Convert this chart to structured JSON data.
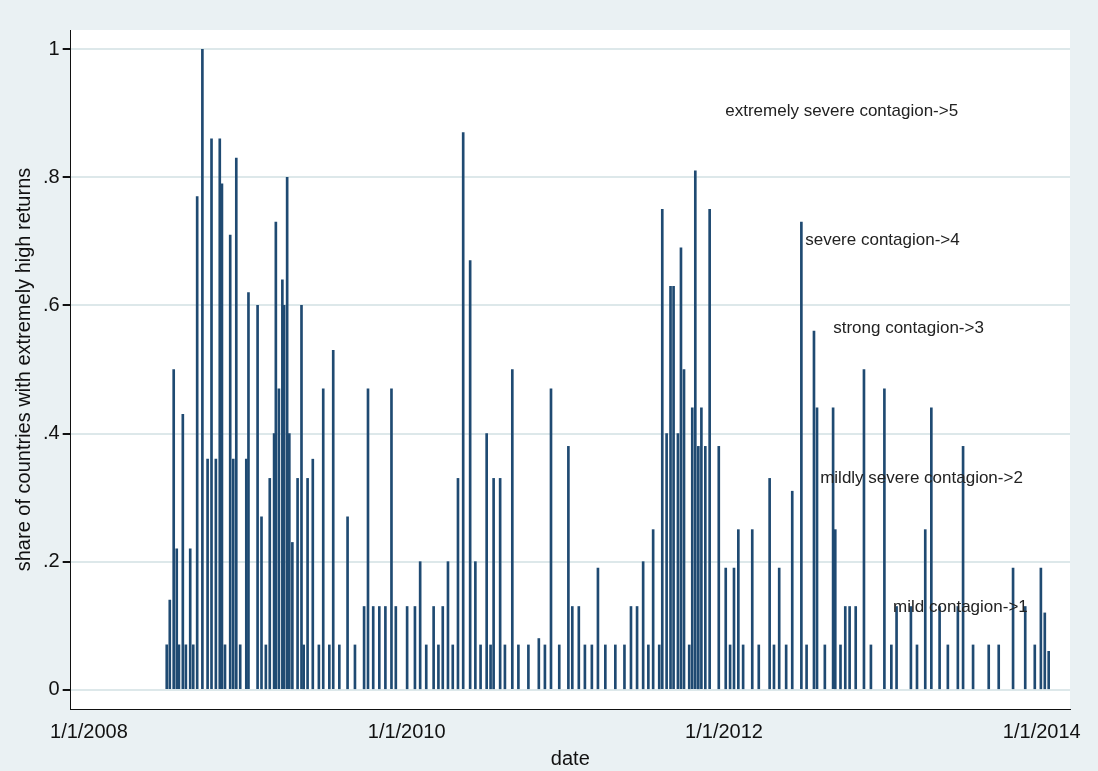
{
  "chart_data": {
    "type": "bar",
    "xlabel": "date",
    "ylabel": "share of countries with extremely high returns",
    "x": [
      "2008-06-28",
      "2008-07-05",
      "2008-07-14",
      "2008-07-21",
      "2008-07-26",
      "2008-08-04",
      "2008-08-11",
      "2008-08-21",
      "2008-08-28",
      "2008-09-06",
      "2008-09-18",
      "2008-09-30",
      "2008-10-09",
      "2008-10-19",
      "2008-10-28",
      "2008-11-02",
      "2008-11-09",
      "2008-11-21",
      "2008-11-28",
      "2008-12-05",
      "2008-12-14",
      "2008-12-28",
      "2009-01-02",
      "2009-01-23",
      "2009-02-01",
      "2009-02-11",
      "2009-02-20",
      "2009-03-02",
      "2009-03-06",
      "2009-03-13",
      "2009-03-21",
      "2009-03-25",
      "2009-04-01",
      "2009-04-06",
      "2009-04-13",
      "2009-04-25",
      "2009-05-04",
      "2009-05-09",
      "2009-05-18",
      "2009-05-30",
      "2009-06-13",
      "2009-06-23",
      "2009-07-07",
      "2009-07-16",
      "2009-07-30",
      "2009-08-18",
      "2009-09-04",
      "2009-09-25",
      "2009-10-04",
      "2009-10-16",
      "2009-10-30",
      "2009-11-13",
      "2009-11-27",
      "2009-12-07",
      "2010-01-02",
      "2010-01-20",
      "2010-02-01",
      "2010-02-15",
      "2010-03-04",
      "2010-03-15",
      "2010-03-25",
      "2010-04-06",
      "2010-04-17",
      "2010-04-29",
      "2010-05-11",
      "2010-05-27",
      "2010-06-08",
      "2010-06-20",
      "2010-07-04",
      "2010-07-13",
      "2010-07-20",
      "2010-08-04",
      "2010-08-15",
      "2010-09-01",
      "2010-09-15",
      "2010-10-08",
      "2010-11-01",
      "2010-11-15",
      "2010-11-29",
      "2010-12-18",
      "2011-01-08",
      "2011-01-17",
      "2011-02-01",
      "2011-02-15",
      "2011-03-03",
      "2011-03-17",
      "2011-04-03",
      "2011-04-26",
      "2011-05-17",
      "2011-06-01",
      "2011-06-15",
      "2011-06-29",
      "2011-07-11",
      "2011-07-22",
      "2011-08-05",
      "2011-08-12",
      "2011-08-22",
      "2011-08-31",
      "2011-09-07",
      "2011-09-17",
      "2011-09-24",
      "2011-10-01",
      "2011-10-13",
      "2011-10-20",
      "2011-10-27",
      "2011-11-03",
      "2011-11-10",
      "2011-11-19",
      "2011-11-29",
      "2011-12-20",
      "2012-01-05",
      "2012-01-15",
      "2012-01-24",
      "2012-02-03",
      "2012-02-14",
      "2012-03-06",
      "2012-03-21",
      "2012-04-15",
      "2012-04-25",
      "2012-05-07",
      "2012-05-23",
      "2012-06-06",
      "2012-06-27",
      "2012-07-09",
      "2012-07-26",
      "2012-08-02",
      "2012-08-20",
      "2012-09-08",
      "2012-09-13",
      "2012-09-25",
      "2012-10-06",
      "2012-10-16",
      "2012-10-30",
      "2012-11-18",
      "2012-12-04",
      "2013-01-04",
      "2013-01-20",
      "2013-02-01",
      "2013-03-06",
      "2013-03-20",
      "2013-04-08",
      "2013-04-22",
      "2013-05-11",
      "2013-05-30",
      "2013-06-22",
      "2013-07-04",
      "2013-07-27",
      "2013-09-01",
      "2013-09-24",
      "2013-10-27",
      "2013-11-24",
      "2013-12-16",
      "2013-12-30",
      "2014-01-08",
      "2014-01-17"
    ],
    "values": [
      0.07,
      0.14,
      0.5,
      0.22,
      0.07,
      0.43,
      0.07,
      0.22,
      0.07,
      0.77,
      1.0,
      0.36,
      0.86,
      0.36,
      0.86,
      0.79,
      0.07,
      0.71,
      0.36,
      0.83,
      0.07,
      0.36,
      0.62,
      0.6,
      0.27,
      0.07,
      0.33,
      0.4,
      0.73,
      0.47,
      0.64,
      0.6,
      0.8,
      0.4,
      0.23,
      0.33,
      0.6,
      0.07,
      0.33,
      0.36,
      0.07,
      0.47,
      0.07,
      0.53,
      0.07,
      0.27,
      0.07,
      0.13,
      0.47,
      0.13,
      0.13,
      0.13,
      0.47,
      0.13,
      0.13,
      0.13,
      0.2,
      0.07,
      0.13,
      0.07,
      0.13,
      0.2,
      0.07,
      0.33,
      0.87,
      0.67,
      0.2,
      0.07,
      0.4,
      0.07,
      0.33,
      0.33,
      0.07,
      0.5,
      0.07,
      0.07,
      0.08,
      0.07,
      0.47,
      0.07,
      0.38,
      0.13,
      0.13,
      0.07,
      0.07,
      0.19,
      0.07,
      0.07,
      0.07,
      0.13,
      0.13,
      0.2,
      0.07,
      0.25,
      0.07,
      0.75,
      0.4,
      0.63,
      0.63,
      0.4,
      0.69,
      0.5,
      0.07,
      0.44,
      0.81,
      0.38,
      0.44,
      0.38,
      0.75,
      0.38,
      0.19,
      0.07,
      0.19,
      0.25,
      0.07,
      0.25,
      0.07,
      0.33,
      0.07,
      0.19,
      0.07,
      0.31,
      0.73,
      0.07,
      0.56,
      0.44,
      0.07,
      0.44,
      0.25,
      0.07,
      0.13,
      0.13,
      0.13,
      0.5,
      0.07,
      0.47,
      0.07,
      0.13,
      0.13,
      0.07,
      0.25,
      0.44,
      0.13,
      0.07,
      0.13,
      0.38,
      0.07,
      0.07,
      0.07,
      0.19,
      0.13,
      0.07,
      0.19,
      0.12,
      0.06
    ],
    "color": "#1f4a72",
    "xlim": [
      "2007-11-20",
      "2014-03-07"
    ],
    "xticks": [
      {
        "value": "2008-01-01",
        "label": "1/1/2008"
      },
      {
        "value": "2010-01-01",
        "label": "1/1/2010"
      },
      {
        "value": "2012-01-01",
        "label": "1/1/2012"
      },
      {
        "value": "2014-01-01",
        "label": "1/1/2014"
      }
    ],
    "ylim": [
      -0.03,
      1.03
    ],
    "yticks": [
      {
        "value": 0,
        "label": "0"
      },
      {
        "value": 0.2,
        "label": ".2"
      },
      {
        "value": 0.4,
        "label": ".4"
      },
      {
        "value": 0.6,
        "label": ".6"
      },
      {
        "value": 0.8,
        "label": ".8"
      },
      {
        "value": 1,
        "label": "1"
      }
    ],
    "grid": "y",
    "legend": false,
    "annotations": [
      "extremely severe contagion->5",
      "severe contagion->4",
      "strong contagion->3",
      "mildly severe contagion->2",
      "mild contagion->1"
    ]
  }
}
